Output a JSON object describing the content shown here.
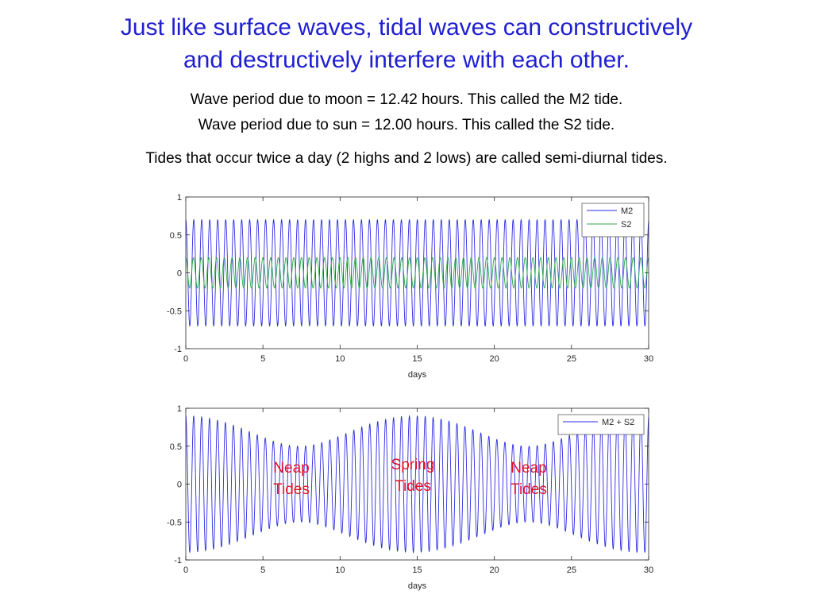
{
  "slide": {
    "title_line1": "Just like surface waves, tidal waves can constructively",
    "title_line2": "and destructively interfere with each other.",
    "line1": "Wave period due to moon = 12.42 hours.  This called the M2 tide.",
    "line2": "Wave period due to sun = 12.00 hours.  This called the S2 tide.",
    "line3": "Tides that occur twice a day (2 highs and 2 lows) are called semi-diurnal tides."
  },
  "annotations": {
    "neap_left": [
      "Neap",
      "Tides"
    ],
    "spring": [
      "Spring",
      "Tides"
    ],
    "neap_right": [
      "Neap",
      "Tides"
    ]
  },
  "colors": {
    "title": "#1f1fd1",
    "annotation": "#e0102a",
    "m2": "#2b2be6",
    "s2": "#2ea84a"
  },
  "chart_data": [
    {
      "type": "line",
      "xlabel": "days",
      "ylabel": "",
      "xlim": [
        0,
        30
      ],
      "ylim": [
        -1,
        1
      ],
      "xticks": [
        0,
        5,
        10,
        15,
        20,
        25,
        30
      ],
      "yticks": [
        1,
        0.5,
        0,
        -0.5,
        -1
      ],
      "ytick_labels": [
        "1",
        "0.5",
        "0",
        "-0.5",
        "-1"
      ],
      "legend_position": "top-right",
      "series": [
        {
          "name": "M2",
          "amplitude": 0.7,
          "period_hours": 12.42,
          "color": "#2b2be6"
        },
        {
          "name": "S2",
          "amplitude": 0.2,
          "period_hours": 12.0,
          "color": "#2ea84a"
        }
      ]
    },
    {
      "type": "line",
      "xlabel": "days",
      "ylabel": "",
      "xlim": [
        0,
        30
      ],
      "ylim": [
        -1,
        1
      ],
      "xticks": [
        0,
        5,
        10,
        15,
        20,
        25,
        30
      ],
      "yticks": [
        1,
        0.5,
        0,
        -0.5,
        -1
      ],
      "ytick_labels": [
        "1",
        "0.5",
        "0",
        "-0.5",
        "-1"
      ],
      "legend_position": "top-right",
      "series": [
        {
          "name": "M2 + S2",
          "components": [
            "M2",
            "S2"
          ],
          "color": "#2b2be6"
        }
      ]
    }
  ]
}
